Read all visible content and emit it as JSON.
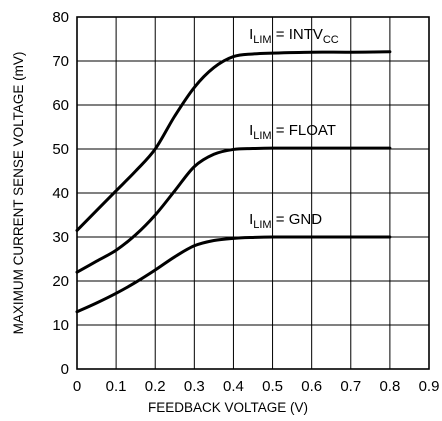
{
  "chart_data": {
    "type": "line",
    "title": "",
    "xlabel": "FEEDBACK VOLTAGE (V)",
    "ylabel": "MAXIMUM CURRENT SENSE VOLTAGE (mV)",
    "xlim": [
      0,
      0.9
    ],
    "ylim": [
      0,
      80
    ],
    "x_ticks": [
      "0",
      "0.1",
      "0.2",
      "0.3",
      "0.4",
      "0.5",
      "0.6",
      "0.7",
      "0.8",
      "0.9"
    ],
    "y_ticks": [
      "0",
      "10",
      "20",
      "30",
      "40",
      "50",
      "60",
      "70",
      "80"
    ],
    "grid": true,
    "line_color": "#000000",
    "series": [
      {
        "label_main": "I",
        "label_sub": "LIM",
        "label_rest": " = INTV",
        "label_sub2": "CC",
        "x": [
          0,
          0.05,
          0.1,
          0.15,
          0.2,
          0.25,
          0.3,
          0.35,
          0.4,
          0.45,
          0.5,
          0.6,
          0.7,
          0.8
        ],
        "y": [
          31.5,
          36,
          40.5,
          45,
          50,
          57.5,
          64,
          68.5,
          71,
          71.6,
          71.8,
          72,
          72,
          72.1
        ]
      },
      {
        "label_main": "I",
        "label_sub": "LIM",
        "label_rest": " = FLOAT",
        "label_sub2": "",
        "x": [
          0,
          0.05,
          0.1,
          0.15,
          0.2,
          0.25,
          0.3,
          0.35,
          0.4,
          0.45,
          0.5,
          0.6,
          0.7,
          0.8
        ],
        "y": [
          22,
          24.5,
          27,
          30.5,
          35,
          40.5,
          46,
          48.8,
          49.9,
          50.1,
          50.2,
          50.2,
          50.2,
          50.2
        ]
      },
      {
        "label_main": "I",
        "label_sub": "LIM",
        "label_rest": " = GND",
        "label_sub2": "",
        "x": [
          0,
          0.05,
          0.1,
          0.15,
          0.2,
          0.25,
          0.3,
          0.35,
          0.4,
          0.45,
          0.5,
          0.6,
          0.7,
          0.8
        ],
        "y": [
          13,
          15,
          17.2,
          19.7,
          22.5,
          25.5,
          28,
          29.2,
          29.7,
          29.9,
          30,
          30,
          30,
          30
        ]
      }
    ]
  }
}
